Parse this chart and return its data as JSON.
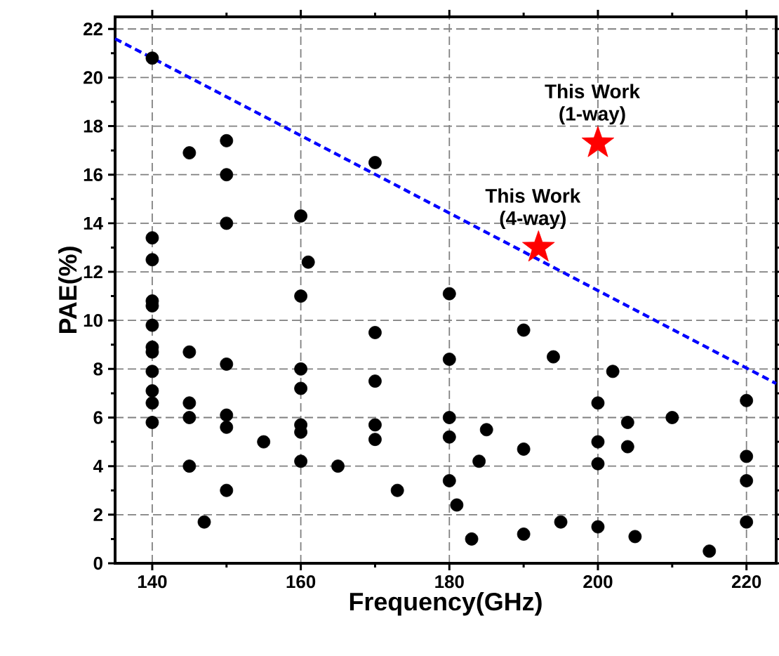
{
  "chart_data": {
    "type": "scatter",
    "xlabel": "Frequency(GHz)",
    "ylabel": "PAE(%)",
    "xlim": [
      135,
      224
    ],
    "ylim": [
      0,
      22.5
    ],
    "xticks": [
      140,
      160,
      180,
      200,
      220
    ],
    "yticks": [
      0,
      2,
      4,
      6,
      8,
      10,
      12,
      14,
      16,
      18,
      20,
      22
    ],
    "grid": true,
    "series": [
      {
        "type": "scatter",
        "color": "#000000",
        "marker": "circle",
        "x": [
          140,
          140,
          140,
          140,
          140,
          140,
          140,
          140,
          140,
          140,
          140,
          140,
          145,
          145,
          145,
          145,
          145,
          147,
          150,
          150,
          150,
          150,
          150,
          150,
          150,
          155,
          160,
          160,
          160,
          160,
          160,
          160,
          160,
          161,
          165,
          170,
          170,
          170,
          170,
          170,
          173,
          180,
          180,
          180,
          180,
          180,
          181,
          183,
          184,
          185,
          190,
          190,
          190,
          194,
          195,
          200,
          200,
          200,
          200,
          202,
          204,
          204,
          205,
          210,
          215,
          220,
          220,
          220,
          220
        ],
        "values": [
          20.8,
          13.4,
          12.5,
          10.8,
          10.6,
          9.8,
          8.9,
          8.7,
          7.9,
          7.1,
          6.6,
          5.8,
          16.9,
          8.7,
          6.6,
          6.0,
          4.0,
          1.7,
          17.4,
          16.0,
          14.0,
          8.2,
          6.1,
          5.6,
          3.0,
          5.0,
          14.3,
          11.0,
          8.0,
          7.2,
          5.7,
          5.4,
          4.2,
          12.4,
          4.0,
          16.5,
          9.5,
          7.5,
          5.7,
          5.1,
          3.0,
          11.1,
          8.4,
          6.0,
          5.2,
          3.4,
          2.4,
          1.0,
          4.2,
          5.5,
          9.6,
          4.7,
          1.2,
          8.5,
          1.7,
          6.6,
          5.0,
          4.1,
          1.5,
          7.9,
          5.8,
          4.8,
          1.1,
          6.0,
          0.5,
          6.7,
          4.4,
          3.4,
          1.7
        ]
      },
      {
        "type": "scatter",
        "color": "#ff0000",
        "marker": "star",
        "x": [
          200,
          192
        ],
        "values": [
          17.3,
          13.0
        ]
      },
      {
        "type": "line",
        "color": "#0000ff",
        "marker": "none",
        "line_style": "dashed",
        "x": [
          135,
          224
        ],
        "values": [
          21.6,
          7.4
        ]
      }
    ],
    "annotations": [
      {
        "text": "This Work (1-way)",
        "x": 200,
        "y": 17.3
      },
      {
        "text": "This Work (4-way)",
        "x": 192,
        "y": 13.0
      }
    ]
  }
}
